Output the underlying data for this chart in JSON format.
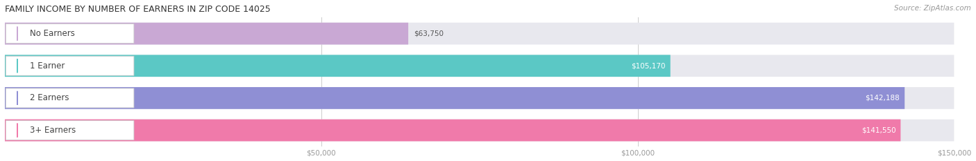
{
  "title": "FAMILY INCOME BY NUMBER OF EARNERS IN ZIP CODE 14025",
  "source": "Source: ZipAtlas.com",
  "categories": [
    "No Earners",
    "1 Earner",
    "2 Earners",
    "3+ Earners"
  ],
  "values": [
    63750,
    105170,
    142188,
    141550
  ],
  "bar_colors": [
    "#c9a8d4",
    "#5bc8c5",
    "#8f8fd4",
    "#f07aaa"
  ],
  "bar_bg_color": "#e8e8ee",
  "max_value": 150000,
  "x_ticks": [
    50000,
    100000,
    150000
  ],
  "x_tick_labels": [
    "$50,000",
    "$100,000",
    "$150,000"
  ],
  "fig_width": 14.06,
  "fig_height": 2.33,
  "background_color": "#ffffff",
  "title_fontsize": 9,
  "source_fontsize": 7.5,
  "bar_label_fontsize": 7.5,
  "category_fontsize": 8.5
}
